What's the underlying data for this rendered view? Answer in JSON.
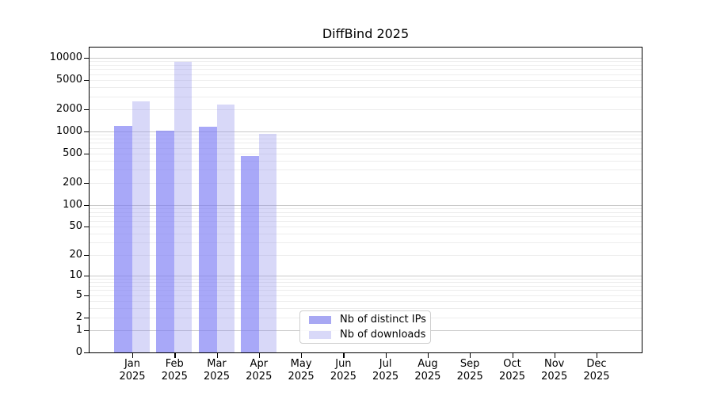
{
  "title": "DiffBind 2025",
  "chart_data": {
    "type": "bar",
    "title": "DiffBind 2025",
    "categories": [
      "Jan",
      "Feb",
      "Mar",
      "Apr",
      "May",
      "Jun",
      "Jul",
      "Aug",
      "Sep",
      "Oct",
      "Nov",
      "Dec"
    ],
    "x_tick_line2": "2025",
    "series": [
      {
        "name": "Nb of distinct IPs",
        "color": "rgba(121,121,244,0.65)",
        "legend_swatch": "#a8a8f3",
        "values": [
          1200,
          1020,
          1150,
          465,
          null,
          null,
          null,
          null,
          null,
          null,
          null,
          null
        ]
      },
      {
        "name": "Nb of downloads",
        "color": "rgba(143,143,235,0.35)",
        "legend_swatch": "#d9d9f8",
        "values": [
          2550,
          8800,
          2320,
          930,
          null,
          null,
          null,
          null,
          null,
          null,
          null,
          null
        ]
      }
    ],
    "yscale": "log1p",
    "y_ticks": [
      0,
      1,
      2,
      5,
      10,
      20,
      50,
      100,
      200,
      500,
      1000,
      2000,
      5000,
      10000
    ],
    "ylim": [
      0,
      13800
    ],
    "grid": true,
    "legend_position": "inside lower center"
  },
  "colors": {
    "major_grid": "#c8c8c8",
    "minor_grid": "#ededed",
    "axis": "#000000",
    "background": "#ffffff"
  }
}
